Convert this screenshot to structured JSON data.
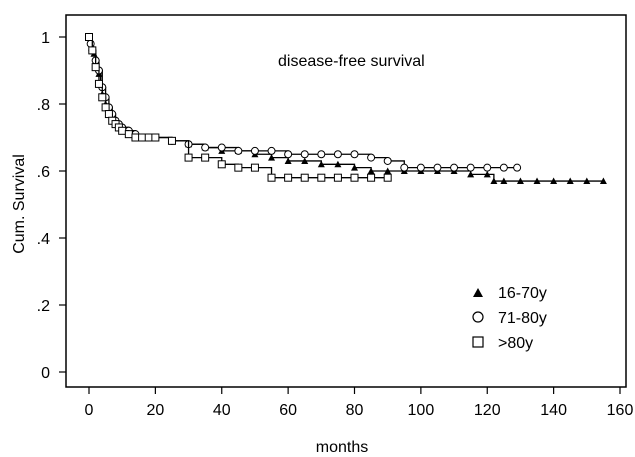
{
  "chart_data": {
    "type": "line",
    "title": "disease-free survival",
    "xlabel": "months",
    "ylabel": "Cum. Survival",
    "xlim": [
      0,
      160
    ],
    "ylim": [
      0,
      1
    ],
    "x_ticks": [
      0,
      20,
      40,
      60,
      80,
      100,
      120,
      140,
      160
    ],
    "y_ticks": [
      0,
      0.2,
      0.4,
      0.6,
      0.8,
      1
    ],
    "y_tick_labels": [
      "0",
      ".2",
      ".4",
      ".6",
      ".8",
      "1"
    ],
    "grid": false,
    "legend_position": "bottom-right",
    "series": [
      {
        "name": "16-70y",
        "marker": "triangle",
        "x": [
          0,
          0.5,
          1,
          1.5,
          2,
          2.5,
          3,
          3.5,
          4,
          5,
          6,
          7,
          8,
          9,
          10,
          12,
          14,
          16,
          18,
          20,
          25,
          30,
          35,
          40,
          45,
          50,
          55,
          60,
          65,
          70,
          75,
          80,
          85,
          90,
          95,
          100,
          105,
          110,
          115,
          120,
          122,
          125,
          130,
          135,
          140,
          145,
          150,
          155
        ],
        "y": [
          1.0,
          0.99,
          0.97,
          0.95,
          0.93,
          0.91,
          0.89,
          0.86,
          0.83,
          0.8,
          0.78,
          0.76,
          0.75,
          0.74,
          0.73,
          0.72,
          0.71,
          0.7,
          0.7,
          0.7,
          0.69,
          0.68,
          0.67,
          0.66,
          0.66,
          0.65,
          0.64,
          0.63,
          0.63,
          0.62,
          0.62,
          0.61,
          0.6,
          0.6,
          0.6,
          0.6,
          0.6,
          0.6,
          0.59,
          0.59,
          0.57,
          0.57,
          0.57,
          0.57,
          0.57,
          0.57,
          0.57,
          0.57
        ]
      },
      {
        "name": "71-80y",
        "marker": "circle",
        "x": [
          0,
          0.5,
          1,
          2,
          3,
          4,
          5,
          6,
          7,
          8,
          9,
          10,
          12,
          14,
          16,
          18,
          20,
          25,
          30,
          35,
          40,
          45,
          50,
          55,
          60,
          65,
          70,
          75,
          80,
          85,
          90,
          95,
          100,
          105,
          110,
          115,
          120,
          125,
          129
        ],
        "y": [
          1.0,
          0.98,
          0.96,
          0.93,
          0.9,
          0.85,
          0.82,
          0.79,
          0.77,
          0.75,
          0.74,
          0.73,
          0.72,
          0.71,
          0.7,
          0.7,
          0.7,
          0.69,
          0.68,
          0.67,
          0.67,
          0.66,
          0.66,
          0.66,
          0.65,
          0.65,
          0.65,
          0.65,
          0.65,
          0.64,
          0.63,
          0.61,
          0.61,
          0.61,
          0.61,
          0.61,
          0.61,
          0.61,
          0.61
        ]
      },
      {
        "name": ">80y",
        "marker": "square",
        "x": [
          0,
          1,
          2,
          3,
          4,
          5,
          6,
          7,
          8,
          9,
          10,
          12,
          14,
          16,
          18,
          20,
          25,
          30,
          35,
          40,
          45,
          50,
          55,
          60,
          65,
          70,
          75,
          80,
          85,
          90
        ],
        "y": [
          1.0,
          0.96,
          0.91,
          0.86,
          0.82,
          0.79,
          0.77,
          0.75,
          0.74,
          0.73,
          0.72,
          0.71,
          0.7,
          0.7,
          0.7,
          0.7,
          0.69,
          0.64,
          0.64,
          0.62,
          0.61,
          0.61,
          0.58,
          0.58,
          0.58,
          0.58,
          0.58,
          0.58,
          0.58,
          0.58
        ]
      }
    ]
  }
}
